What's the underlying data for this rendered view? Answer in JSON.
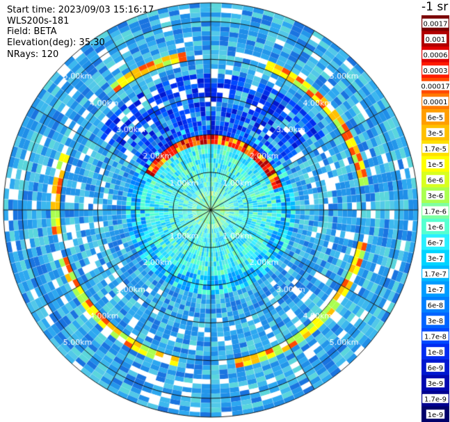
{
  "header": {
    "start_time": "Start time: 2023/09/03 15:16:17",
    "instrument": "WLS200s-181",
    "field": "Field: BETA",
    "elevation": "Elevation(deg): 35.30",
    "nrays": "NRays: 120"
  },
  "colorbar": {
    "title": "-1 sr",
    "labels": [
      "0.0017",
      "0.001",
      "0.0006",
      "0.0003",
      "0.00017",
      "0.0001",
      "6e-5",
      "3e-5",
      "1.7e-5",
      "1e-5",
      "6e-6",
      "3e-6",
      "1.7e-6",
      "1e-6",
      "6e-7",
      "3e-7",
      "1.7e-7",
      "1e-7",
      "6e-8",
      "3e-8",
      "1.7e-8",
      "1e-8",
      "6e-9",
      "3e-9",
      "1.7e-9",
      "1e-9"
    ],
    "colors": [
      "#7a0000",
      "#b00000",
      "#e00000",
      "#ff1a00",
      "#ff4a00",
      "#ff7a00",
      "#ff9e00",
      "#ffc000",
      "#ffe000",
      "#ffff00",
      "#d8ff20",
      "#aaff50",
      "#7fffa0",
      "#55ffd0",
      "#2af0ff",
      "#00d4ff",
      "#00b8ff",
      "#009cff",
      "#0080ff",
      "#0064ff",
      "#0048ff",
      "#002cf0",
      "#0018d0",
      "#0008b0",
      "#000090",
      "#00006a"
    ]
  },
  "chart_data": {
    "type": "heatmap",
    "projection": "polar PPI",
    "field": "BETA",
    "nrays": 120,
    "elevation_deg": 35.3,
    "range_ring_km": [
      1,
      2,
      3,
      4,
      5
    ],
    "range_ring_labels": [
      "1.00km",
      "2.00km",
      "3.00km",
      "4.00km",
      "5.00km"
    ],
    "spokes_deg": [
      0,
      30,
      60,
      90,
      120,
      150,
      180,
      210,
      240,
      270,
      300,
      330
    ],
    "color_scale": "log",
    "scale_min": 1e-09,
    "scale_max": 0.0017,
    "features": [
      {
        "ring_km": 1.9,
        "beta": 0.001,
        "sectors_deg": [
          [
            300,
            360
          ],
          [
            0,
            70
          ]
        ]
      },
      {
        "ring_km": 4.1,
        "beta": 0.0001,
        "sectors_deg": [
          [
            20,
            80
          ],
          [
            100,
            170
          ],
          [
            190,
            250
          ],
          [
            260,
            290
          ],
          [
            320,
            350
          ]
        ]
      }
    ]
  }
}
